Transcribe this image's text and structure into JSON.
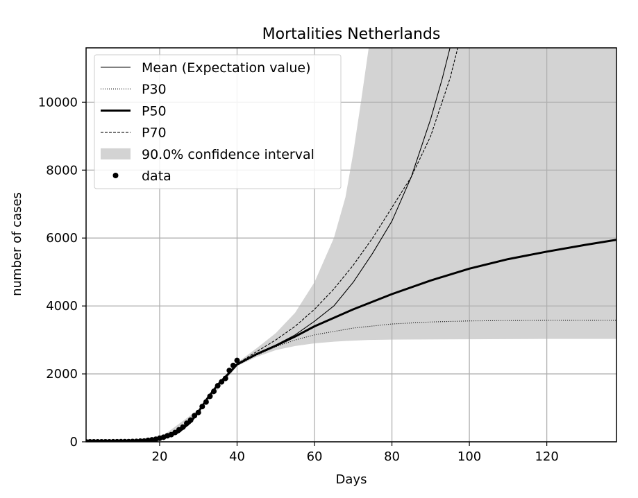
{
  "chart_data": {
    "type": "line",
    "title": "Mortalities Netherlands",
    "xlabel": "Days",
    "ylabel": "number of cases",
    "xlim": [
      1,
      138
    ],
    "ylim": [
      0,
      11600
    ],
    "xticks": [
      20,
      40,
      60,
      80,
      100,
      120
    ],
    "yticks": [
      0,
      2000,
      4000,
      6000,
      8000,
      10000
    ],
    "grid": true,
    "legend_position": "top-left",
    "series": [
      {
        "name": "Mean (Expectation value)",
        "style": "thin-solid",
        "x": [
          1,
          10,
          15,
          20,
          22,
          25,
          28,
          30,
          32,
          35,
          38,
          40,
          45,
          50,
          55,
          60,
          65,
          70,
          75,
          80,
          85,
          90,
          93,
          95
        ],
        "y": [
          0,
          5,
          20,
          90,
          150,
          300,
          600,
          900,
          1250,
          1700,
          2050,
          2300,
          2600,
          2850,
          3150,
          3550,
          4000,
          4700,
          5550,
          6500,
          7800,
          9500,
          10700,
          11600
        ]
      },
      {
        "name": "P30",
        "style": "dotted",
        "x": [
          1,
          10,
          15,
          20,
          22,
          25,
          28,
          30,
          32,
          35,
          38,
          40,
          45,
          50,
          55,
          60,
          70,
          80,
          90,
          100,
          110,
          120,
          130,
          138
        ],
        "y": [
          0,
          5,
          20,
          80,
          130,
          270,
          550,
          850,
          1200,
          1650,
          2000,
          2250,
          2550,
          2800,
          3000,
          3150,
          3350,
          3470,
          3530,
          3560,
          3570,
          3580,
          3580,
          3580
        ]
      },
      {
        "name": "P50",
        "style": "thick-solid",
        "x": [
          1,
          10,
          15,
          20,
          22,
          25,
          28,
          30,
          32,
          35,
          38,
          40,
          45,
          50,
          55,
          60,
          70,
          80,
          90,
          100,
          110,
          120,
          130,
          138
        ],
        "y": [
          0,
          5,
          20,
          85,
          140,
          290,
          580,
          880,
          1230,
          1680,
          2030,
          2280,
          2580,
          2830,
          3100,
          3400,
          3900,
          4350,
          4750,
          5100,
          5380,
          5600,
          5800,
          5950
        ]
      },
      {
        "name": "P70",
        "style": "dashed",
        "x": [
          1,
          10,
          15,
          20,
          22,
          25,
          28,
          30,
          32,
          35,
          38,
          40,
          45,
          50,
          55,
          60,
          65,
          70,
          75,
          80,
          85,
          90,
          95,
          97
        ],
        "y": [
          0,
          5,
          20,
          90,
          150,
          300,
          600,
          900,
          1250,
          1700,
          2050,
          2300,
          2650,
          3000,
          3400,
          3900,
          4500,
          5200,
          6000,
          6900,
          7800,
          9000,
          10700,
          11600
        ]
      }
    ],
    "confidence_interval": {
      "name": "90.0% confidence interval",
      "x": [
        1,
        20,
        30,
        40,
        45,
        50,
        55,
        60,
        65,
        68,
        70,
        72,
        74,
        80,
        100,
        120,
        138
      ],
      "lower": [
        0,
        70,
        830,
        2230,
        2500,
        2700,
        2820,
        2900,
        2950,
        2970,
        2980,
        2990,
        3000,
        3010,
        3020,
        3030,
        3030
      ],
      "upper": [
        0,
        110,
        950,
        2330,
        2750,
        3200,
        3800,
        4700,
        6000,
        7200,
        8500,
        10000,
        11600,
        11600,
        11600,
        11600,
        11600
      ]
    },
    "data_points": {
      "name": "data",
      "x": [
        1,
        2,
        3,
        4,
        5,
        6,
        7,
        8,
        9,
        10,
        11,
        12,
        13,
        14,
        15,
        16,
        17,
        18,
        19,
        20,
        21,
        22,
        23,
        24,
        25,
        26,
        27,
        28,
        29,
        30,
        31,
        32,
        33,
        34,
        35,
        36,
        37,
        38,
        39,
        40
      ],
      "y": [
        0,
        0,
        0,
        0,
        0,
        0,
        1,
        2,
        3,
        4,
        5,
        6,
        10,
        12,
        20,
        24,
        43,
        58,
        76,
        106,
        136,
        179,
        213,
        276,
        356,
        434,
        546,
        639,
        771,
        864,
        1039,
        1173,
        1339,
        1487,
        1651,
        1766,
        1867,
        2101,
        2248,
        2396
      ]
    }
  }
}
